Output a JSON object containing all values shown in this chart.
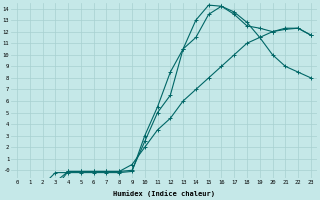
{
  "xlabel": "Humidex (Indice chaleur)",
  "bg_color": "#c5e8e8",
  "grid_color": "#a8d0d0",
  "line_color": "#006666",
  "xlim": [
    -0.5,
    23.5
  ],
  "ylim": [
    -0.7,
    14.5
  ],
  "xticks": [
    0,
    1,
    2,
    3,
    4,
    5,
    6,
    7,
    8,
    9,
    10,
    11,
    12,
    13,
    14,
    15,
    16,
    17,
    18,
    19,
    20,
    21,
    22,
    23
  ],
  "yticks": [
    0,
    1,
    2,
    3,
    4,
    5,
    6,
    7,
    8,
    9,
    10,
    11,
    12,
    13,
    14
  ],
  "ytick_labels": [
    "-0",
    "1",
    "2",
    "3",
    "4",
    "5",
    "6",
    "7",
    "8",
    "9",
    "10",
    "11",
    "12",
    "13",
    "14"
  ],
  "curve1_x": [
    0,
    1,
    2,
    3,
    4,
    5,
    6,
    7,
    8,
    9,
    10,
    11,
    12,
    13,
    14,
    15,
    16,
    17,
    18,
    19,
    20,
    21,
    22,
    23
  ],
  "curve1_y": [
    -1,
    -1,
    -1,
    -1.5,
    -0.1,
    -0.1,
    -0.1,
    -0.1,
    -0.1,
    0,
    2.5,
    5,
    6.5,
    10.5,
    13,
    14.3,
    14.2,
    13.5,
    12.5,
    12.3,
    12.0,
    12.2,
    12.3,
    11.7
  ],
  "curve2_x": [
    0,
    1,
    2,
    3,
    4,
    5,
    6,
    7,
    8,
    9,
    10,
    11,
    12,
    13,
    14,
    15,
    16,
    17,
    18,
    19,
    20,
    21,
    22,
    23
  ],
  "curve2_y": [
    -1,
    -1,
    -1,
    -1,
    -0.1,
    -0.1,
    -0.1,
    -0.1,
    -0.1,
    0.5,
    2,
    3.5,
    4.5,
    6,
    7,
    8,
    9,
    10,
    11,
    11.5,
    12,
    12.3,
    12.3,
    11.7
  ],
  "curve3_x": [
    0,
    1,
    2,
    3,
    4,
    5,
    6,
    7,
    8,
    9,
    10,
    11,
    12,
    13,
    14,
    15,
    16,
    17,
    18,
    19,
    20,
    21,
    22,
    23
  ],
  "curve3_y": [
    -1,
    -1,
    -1.3,
    -0.2,
    -0.2,
    -0.2,
    -0.2,
    -0.2,
    -0.2,
    -0.1,
    3,
    5.5,
    8.5,
    10.5,
    11.5,
    13.5,
    14.2,
    13.7,
    12.8,
    11.5,
    10,
    9,
    8.5,
    8
  ]
}
